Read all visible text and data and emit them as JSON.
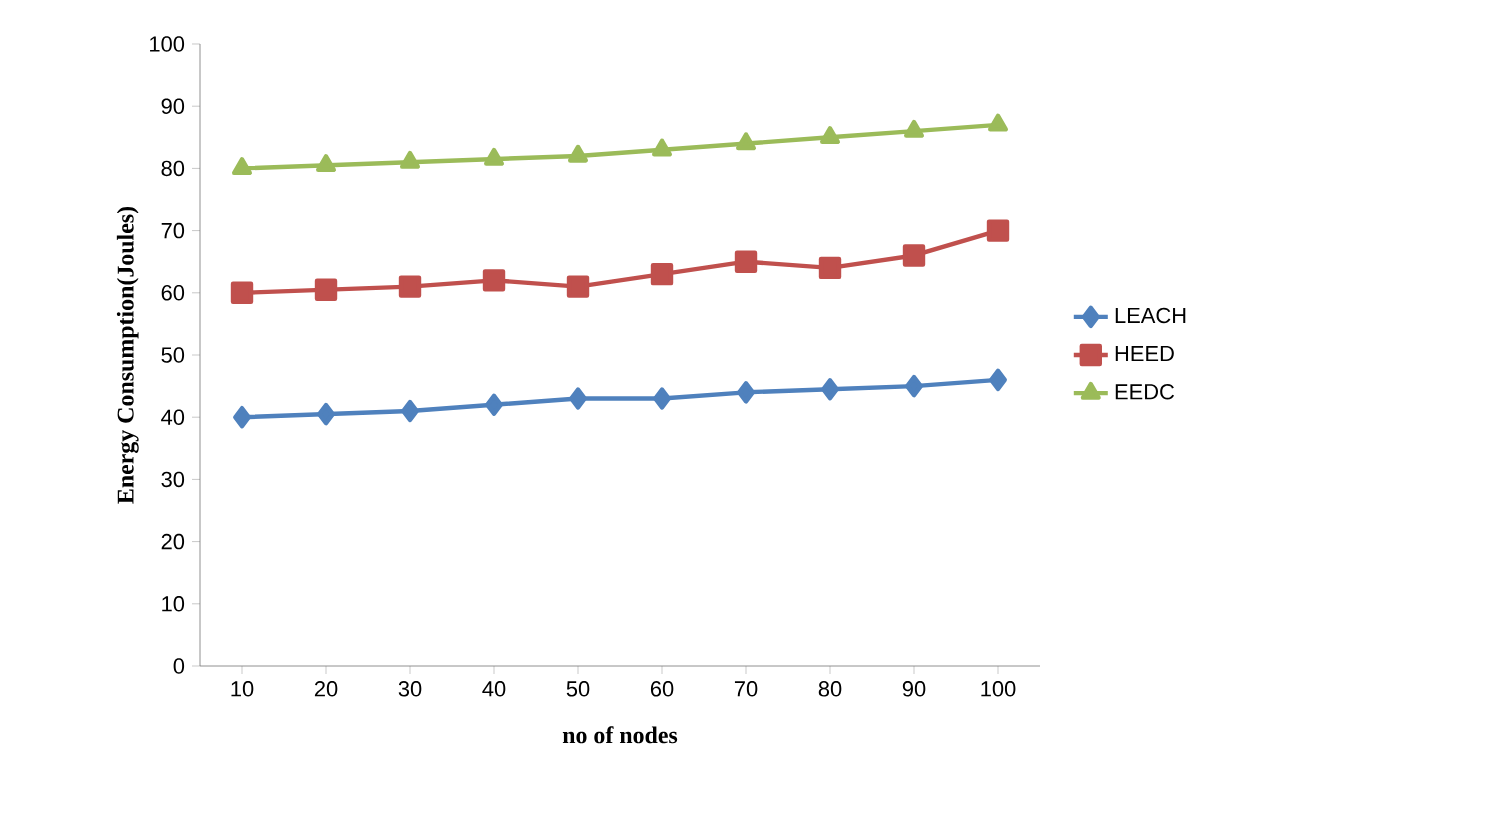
{
  "chart_data": {
    "type": "line",
    "xlabel": "no of nodes",
    "ylabel": "Energy Consumption(Joules)",
    "categories": [
      "10",
      "20",
      "30",
      "40",
      "50",
      "60",
      "70",
      "80",
      "90",
      "100"
    ],
    "series": [
      {
        "name": "LEACH",
        "color": "#4f81bd",
        "marker": "diamond",
        "values": [
          40,
          40.5,
          41,
          42,
          43,
          43,
          44,
          44.5,
          45,
          46
        ]
      },
      {
        "name": "HEED",
        "color": "#c0504d",
        "marker": "square",
        "values": [
          60,
          60.5,
          61,
          62,
          61,
          63,
          65,
          64,
          66,
          70
        ]
      },
      {
        "name": "EEDC",
        "color": "#9bbb59",
        "marker": "triangle",
        "values": [
          80,
          80.5,
          81,
          81.5,
          82,
          83,
          84,
          85,
          86,
          87
        ]
      }
    ],
    "ylim": [
      0,
      100
    ],
    "yticks": [
      0,
      10,
      20,
      30,
      40,
      50,
      60,
      70,
      80,
      90,
      100
    ],
    "grid": false,
    "legend": "right",
    "line_style": "solid"
  }
}
